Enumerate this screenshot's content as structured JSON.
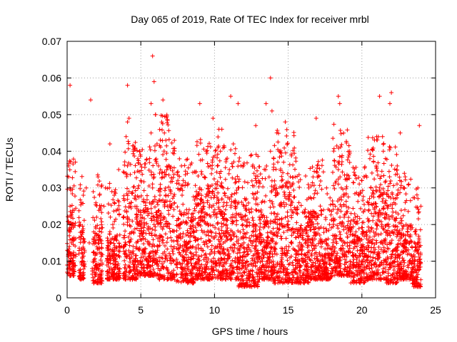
{
  "chart_data": {
    "type": "scatter",
    "title": "Day 065 of 2019, Rate Of TEC Index for receiver mrbl",
    "xlabel": "GPS time / hours",
    "ylabel": "ROTI / TECUs",
    "xlim": [
      0,
      25
    ],
    "ylim": [
      0,
      0.07
    ],
    "x_ticks": [
      "0",
      "5",
      "10",
      "15",
      "20",
      "25"
    ],
    "y_ticks": [
      "0",
      "0.01",
      "0.02",
      "0.03",
      "0.04",
      "0.05",
      "0.06",
      "0.07"
    ],
    "grid": true,
    "marker": "+",
    "series": [
      {
        "name": "ROTI",
        "color": "#ff0000",
        "x": [
          0.0,
          0.1,
          0.1,
          0.2,
          0.2,
          0.1,
          0.1,
          0.2,
          0.3,
          0.2,
          0.15,
          0.25,
          0.1,
          0.2,
          0.3,
          0.8,
          0.9,
          1.0,
          0.9,
          1.0,
          1.1,
          1.3,
          1.5,
          1.7,
          1.8,
          1.9,
          2.0,
          2.1,
          2.2,
          1.8,
          1.9,
          2.3,
          2.5,
          2.6,
          2.8,
          3.0,
          3.1,
          3.2,
          3.3,
          3.5,
          3.7,
          3.8,
          3.9,
          4.0,
          4.1,
          4.2,
          4.0,
          4.1,
          4.3,
          4.4,
          4.5,
          4.6,
          4.7,
          4.8,
          5.0,
          5.2,
          5.3,
          5.5,
          5.6,
          5.7,
          5.8,
          5.9,
          6.0,
          6.1,
          6.2,
          6.3,
          6.4,
          6.5,
          6.6,
          6.8,
          7.0,
          7.2,
          7.4,
          7.6,
          7.8,
          8.0,
          8.2,
          8.4,
          8.6,
          8.8,
          9.0,
          9.2,
          9.4,
          9.6,
          9.8,
          10.0,
          10.2,
          10.4,
          10.6,
          10.8,
          11.0,
          11.2,
          11.4,
          11.6,
          11.8,
          12.0,
          12.2,
          12.4,
          12.6,
          12.8,
          13.0,
          13.2,
          13.4,
          13.6,
          13.8,
          14.0,
          14.2,
          14.4,
          14.6,
          14.8,
          15.0,
          15.2,
          15.4,
          15.6,
          15.8,
          16.0,
          16.2,
          16.4,
          16.6,
          16.8,
          17.0,
          17.2,
          17.4,
          17.6,
          17.8,
          18.0,
          18.2,
          18.4,
          18.6,
          18.8,
          19.0,
          19.2,
          19.4,
          19.6,
          19.8,
          20.0,
          20.2,
          20.4,
          20.6,
          20.8,
          21.0,
          21.2,
          21.4,
          21.6,
          21.8,
          22.0,
          22.2,
          22.4,
          22.6,
          22.8,
          23.0,
          23.2,
          23.4,
          23.6,
          23.8,
          24.0,
          5.8,
          5.9,
          5.7,
          6.0,
          6.5,
          6.6,
          6.7,
          4.1,
          4.2,
          1.6,
          0.2,
          13.8,
          13.9,
          18.4,
          18.5,
          21.2,
          21.9,
          22.0,
          11.1,
          11.6,
          12.8,
          13.5,
          14.8,
          16.9,
          9.0,
          9.9,
          10.3,
          10.5,
          23.9,
          21.0,
          2.9,
          3.5,
          4.5
        ],
        "y": [
          0.007,
          0.009,
          0.012,
          0.018,
          0.025,
          0.033,
          0.036,
          0.03,
          0.02,
          0.008,
          0.014,
          0.022,
          0.01,
          0.006,
          0.015,
          0.012,
          0.02,
          0.009,
          0.006,
          0.018,
          0.028,
          0.03,
          0.015,
          0.008,
          0.004,
          0.012,
          0.022,
          0.033,
          0.028,
          0.018,
          0.01,
          0.006,
          0.025,
          0.03,
          0.015,
          0.008,
          0.02,
          0.028,
          0.01,
          0.006,
          0.014,
          0.022,
          0.012,
          0.034,
          0.036,
          0.029,
          0.044,
          0.048,
          0.025,
          0.018,
          0.012,
          0.008,
          0.015,
          0.02,
          0.032,
          0.024,
          0.016,
          0.01,
          0.038,
          0.045,
          0.03,
          0.02,
          0.05,
          0.042,
          0.036,
          0.028,
          0.022,
          0.015,
          0.033,
          0.025,
          0.018,
          0.012,
          0.009,
          0.02,
          0.028,
          0.015,
          0.01,
          0.006,
          0.018,
          0.025,
          0.03,
          0.022,
          0.012,
          0.008,
          0.018,
          0.028,
          0.036,
          0.04,
          0.03,
          0.02,
          0.012,
          0.018,
          0.025,
          0.03,
          0.022,
          0.015,
          0.01,
          0.006,
          0.018,
          0.024,
          0.032,
          0.026,
          0.02,
          0.014,
          0.04,
          0.035,
          0.028,
          0.02,
          0.012,
          0.008,
          0.03,
          0.024,
          0.018,
          0.01,
          0.006,
          0.016,
          0.022,
          0.03,
          0.02,
          0.012,
          0.008,
          0.015,
          0.024,
          0.03,
          0.02,
          0.014,
          0.025,
          0.035,
          0.03,
          0.022,
          0.015,
          0.01,
          0.006,
          0.018,
          0.028,
          0.032,
          0.024,
          0.015,
          0.01,
          0.006,
          0.02,
          0.03,
          0.044,
          0.038,
          0.025,
          0.018,
          0.01,
          0.036,
          0.045,
          0.03,
          0.02,
          0.012,
          0.008,
          0.018,
          0.03,
          0.025,
          0.066,
          0.059,
          0.053,
          0.05,
          0.054,
          0.045,
          0.043,
          0.058,
          0.049,
          0.054,
          0.058,
          0.06,
          0.051,
          0.055,
          0.053,
          0.055,
          0.053,
          0.056,
          0.055,
          0.053,
          0.047,
          0.053,
          0.048,
          0.049,
          0.053,
          0.049,
          0.046,
          0.046,
          0.047,
          0.044,
          0.042,
          0.035,
          0.04
        ]
      }
    ],
    "density_bands": [
      [
        0.0,
        0.6,
        0.006,
        0.024
      ],
      [
        0.8,
        1.2,
        0.005,
        0.02
      ],
      [
        1.7,
        2.4,
        0.004,
        0.02
      ],
      [
        2.7,
        3.6,
        0.005,
        0.018
      ],
      [
        3.8,
        4.8,
        0.005,
        0.03
      ],
      [
        4.8,
        6.2,
        0.006,
        0.028
      ],
      [
        6.2,
        7.3,
        0.005,
        0.036
      ],
      [
        7.4,
        8.6,
        0.004,
        0.024
      ],
      [
        8.6,
        10.4,
        0.005,
        0.03
      ],
      [
        10.4,
        11.6,
        0.005,
        0.028
      ],
      [
        11.6,
        13.0,
        0.003,
        0.026
      ],
      [
        13.0,
        14.0,
        0.005,
        0.022
      ],
      [
        14.0,
        15.6,
        0.004,
        0.032
      ],
      [
        15.6,
        16.4,
        0.004,
        0.02
      ],
      [
        16.4,
        17.4,
        0.005,
        0.024
      ],
      [
        17.4,
        18.0,
        0.005,
        0.016
      ],
      [
        18.0,
        19.2,
        0.006,
        0.034
      ],
      [
        19.2,
        20.4,
        0.004,
        0.022
      ],
      [
        20.4,
        21.6,
        0.005,
        0.03
      ],
      [
        21.6,
        22.4,
        0.004,
        0.028
      ],
      [
        22.4,
        23.4,
        0.005,
        0.02
      ],
      [
        23.4,
        24.0,
        0.003,
        0.016
      ]
    ]
  }
}
